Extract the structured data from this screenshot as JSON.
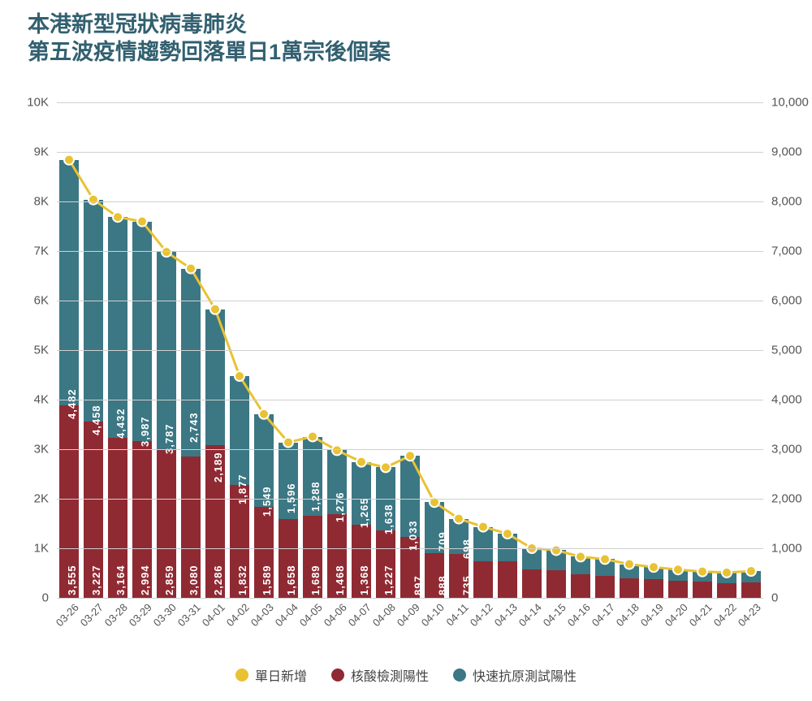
{
  "title_line1": "本港新型冠狀病毒肺炎",
  "title_line2": "第五波疫情趨勢回落單日1萬宗後個案",
  "title_color": "#326070",
  "title_fontsize": 27,
  "chart": {
    "type": "stacked-bar-with-line",
    "background_color": "#ffffff",
    "grid_color": "#d0d0d0",
    "bar_gap_ratio": 0.22,
    "bar_label_color": "#ffffff",
    "bar_label_fontsize": 13,
    "axis_label_color": "#555555",
    "axis_label_fontsize": 15,
    "x_label_fontsize": 13,
    "y_left": {
      "min": 0,
      "max": 10000,
      "step": 1000,
      "fmt": "K",
      "ticks": [
        "0",
        "1K",
        "2K",
        "3K",
        "4K",
        "5K",
        "6K",
        "7K",
        "8K",
        "9K",
        "10K"
      ]
    },
    "y_right": {
      "min": 0,
      "max": 10000,
      "step": 1000,
      "ticks": [
        "0",
        "1,000",
        "2,000",
        "3,000",
        "4,000",
        "5,000",
        "6,000",
        "7,000",
        "8,000",
        "9,000",
        "10,000"
      ]
    },
    "categories": [
      "03-26",
      "03-27",
      "03-28",
      "03-29",
      "03-30",
      "03-31",
      "04-01",
      "04-02",
      "04-03",
      "04-04",
      "04-05",
      "04-06",
      "04-07",
      "04-08",
      "04-09",
      "04-10",
      "04-11",
      "04-12",
      "04-13",
      "04-14",
      "04-15",
      "04-16",
      "04-17",
      "04-18",
      "04-19",
      "04-20",
      "04-21",
      "04-22",
      "04-23"
    ],
    "series": {
      "nucleic": {
        "name": "核酸檢測陽性",
        "color": "#8f2a33",
        "values": [
          3884,
          3555,
          3227,
          3164,
          2994,
          2859,
          3080,
          2286,
          1832,
          1589,
          1658,
          1689,
          1468,
          1368,
          1227,
          897,
          888,
          735,
          734,
          570,
          560,
          480,
          450,
          400,
          370,
          340,
          320,
          300,
          310
        ],
        "show_label_until_index": 17
      },
      "rapid": {
        "name": "快速抗原測試陽性",
        "color": "#3c7784",
        "values": [
          4957,
          4482,
          4458,
          4432,
          3987,
          3787,
          2743,
          2189,
          1877,
          1549,
          1596,
          1288,
          1276,
          1265,
          1638,
          1033,
          709,
          698,
          560,
          430,
          400,
          350,
          330,
          280,
          250,
          230,
          210,
          210,
          230
        ],
        "show_label_until_index": 17
      },
      "daily_new": {
        "name": "單日新增",
        "color": "#e9c233",
        "values": [
          8841,
          8037,
          7685,
          7596,
          6981,
          6646,
          5823,
          4475,
          3709,
          3138,
          3254,
          2977,
          2744,
          2633,
          2865,
          1930,
          1597,
          1433,
          1294,
          1000,
          960,
          830,
          780,
          680,
          620,
          570,
          530,
          510,
          540
        ],
        "marker_radius": 6,
        "line_width": 3,
        "marker_stroke": "#ffffff",
        "marker_stroke_width": 2
      }
    },
    "legend_fontsize": 16,
    "legend_order": [
      "daily_new",
      "nucleic",
      "rapid"
    ]
  }
}
